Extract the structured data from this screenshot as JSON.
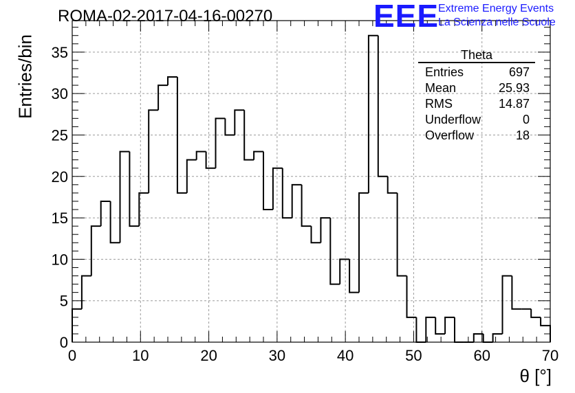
{
  "title": "ROMA-02-2017-04-16-00270",
  "logo": {
    "mark": "EEE",
    "line1": "Extreme Energy Events",
    "line2": "La Scienza nelle Scuole",
    "color": "#1a1aff"
  },
  "stats": {
    "title": "Theta",
    "rows": [
      {
        "label": "Entries",
        "value": "697"
      },
      {
        "label": "Mean",
        "value": "25.93"
      },
      {
        "label": "RMS",
        "value": "14.87"
      },
      {
        "label": "Underflow",
        "value": "0"
      },
      {
        "label": "Overflow",
        "value": "18"
      }
    ]
  },
  "chart_data": {
    "type": "bar",
    "histogram": true,
    "xlabel": "θ [°]",
    "ylabel": "Entries/bin",
    "xlim": [
      0,
      70
    ],
    "ylim": [
      0,
      38.8
    ],
    "bin_width": 1.4,
    "bin_edges_start": 0,
    "values": [
      4,
      8,
      14,
      17,
      12,
      23,
      14,
      18,
      28,
      31,
      32,
      18,
      22,
      23,
      21,
      27,
      25,
      28,
      22,
      23,
      16,
      21,
      15,
      19,
      14,
      12,
      15,
      7,
      10,
      6,
      18,
      37,
      20,
      18,
      8,
      3,
      0,
      3,
      1,
      3,
      0,
      0,
      1,
      0,
      1,
      8,
      4,
      4,
      3,
      2
    ],
    "xticks": [
      0,
      10,
      20,
      30,
      40,
      50,
      60,
      70
    ],
    "yticks": [
      0,
      5,
      10,
      15,
      20,
      25,
      30,
      35
    ],
    "grid": true,
    "line_color": "#000000"
  }
}
